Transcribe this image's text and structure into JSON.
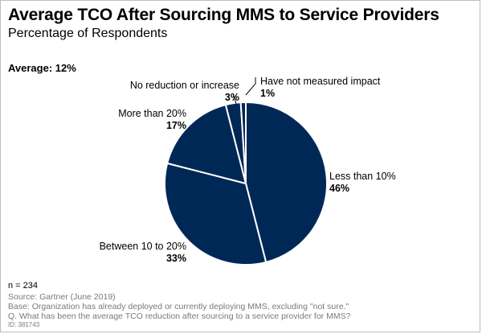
{
  "title": "Average TCO After Sourcing MMS to Service Providers",
  "subtitle": "Percentage of Respondents",
  "average_label": "Average: 12%",
  "footer": {
    "n": "n = 234",
    "source": "Source: Gartner (June 2019)",
    "base": "Base: Organization has already deployed or currently deploying MMS, excluding \"not sure.\"",
    "question": "Q. What has been the average TCO reduction after sourcing to a service provider for MMS?",
    "id": "ID: 381743"
  },
  "colors": {
    "slice": "#002856",
    "separator": "#ffffff",
    "text": "#000000",
    "footer_text": "#7a7a7a"
  },
  "chart_data": {
    "type": "pie",
    "title": "Average TCO After Sourcing MMS to Service Providers",
    "subtitle": "Percentage of Respondents",
    "slices": [
      {
        "label": "Less than 10%",
        "value": 46,
        "value_label": "46%"
      },
      {
        "label": "Between 10 to 20%",
        "value": 33,
        "value_label": "33%"
      },
      {
        "label": "More than 20%",
        "value": 17,
        "value_label": "17%"
      },
      {
        "label": "No reduction or increase",
        "value": 3,
        "value_label": "3%"
      },
      {
        "label": "Have not measured impact",
        "value": 1,
        "value_label": "1%"
      }
    ]
  }
}
